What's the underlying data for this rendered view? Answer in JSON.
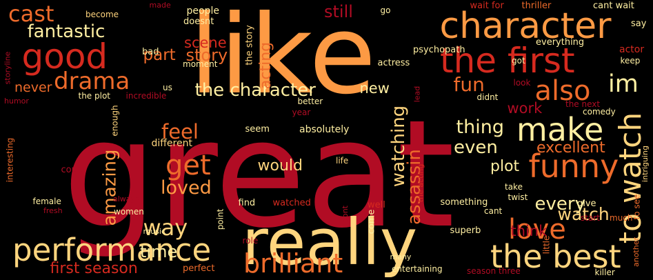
{
  "palette": {
    "background": "#000000",
    "deep_red": "#b10c24",
    "red": "#d62a1f",
    "orange": "#ee6b2b",
    "light_orange": "#fd9a44",
    "yellow": "#ffd57e",
    "pale_yellow": "#ffefa2"
  },
  "words": [
    {
      "text": "great",
      "color": "#b10c24"
    },
    {
      "text": "like",
      "color": "#fd9a44"
    },
    {
      "text": "really",
      "color": "#ffd57e"
    },
    {
      "text": "character",
      "color": "#fd9a44"
    },
    {
      "text": "the first",
      "color": "#d62a1f"
    },
    {
      "text": "good",
      "color": "#d62a1f"
    },
    {
      "text": "performance",
      "color": "#ffd57e"
    },
    {
      "text": "the best",
      "color": "#ffd57e"
    },
    {
      "text": "funny",
      "color": "#ee6b2b"
    },
    {
      "text": "make",
      "color": "#ffefa2"
    },
    {
      "text": "to watch",
      "color": "#ffd57e"
    },
    {
      "text": "brilliant",
      "color": "#ee6b2b"
    },
    {
      "text": "love",
      "color": "#ee6b2b"
    },
    {
      "text": "also",
      "color": "#ee6b2b"
    },
    {
      "text": "drama",
      "color": "#ee6b2b"
    },
    {
      "text": "cast",
      "color": "#ee6b2b"
    },
    {
      "text": "get",
      "color": "#ee6b2b"
    },
    {
      "text": "way",
      "color": "#ffd57e"
    },
    {
      "text": "im",
      "color": "#ffefa2"
    },
    {
      "text": "the character",
      "color": "#ffefa2"
    },
    {
      "text": "fantastic",
      "color": "#ffefa2"
    },
    {
      "text": "loved",
      "color": "#fd9a44"
    },
    {
      "text": "time",
      "color": "#ffefa2"
    },
    {
      "text": "fun",
      "color": "#ee6b2b"
    },
    {
      "text": "feel",
      "color": "#ee6b2b"
    },
    {
      "text": "thing",
      "color": "#ffefa2"
    },
    {
      "text": "amazing",
      "color": "#fd9a44"
    },
    {
      "text": "watching",
      "color": "#ffd57e"
    },
    {
      "text": "assassin",
      "color": "#ee6b2b"
    },
    {
      "text": "even",
      "color": "#ffefa2"
    },
    {
      "text": "excellent",
      "color": "#ee6b2b"
    },
    {
      "text": "every",
      "color": "#ffefa2"
    },
    {
      "text": "watch",
      "color": "#ffd57e"
    },
    {
      "text": "would",
      "color": "#ffd57e"
    },
    {
      "text": "plot",
      "color": "#ffefa2"
    },
    {
      "text": "first season",
      "color": "#d62a1f"
    },
    {
      "text": "part",
      "color": "#ee6b2b"
    },
    {
      "text": "story",
      "color": "#ee6b2b"
    },
    {
      "text": "scene",
      "color": "#d62a1f"
    },
    {
      "text": "still",
      "color": "#b10c24"
    },
    {
      "text": "new",
      "color": "#ffefa2"
    },
    {
      "text": "never",
      "color": "#ee6b2b"
    },
    {
      "text": "acting",
      "color": "#ee6b2b"
    },
    {
      "text": "work",
      "color": "#b10c24"
    },
    {
      "text": "think",
      "color": "#b10c24"
    },
    {
      "text": "the story",
      "color": "#ffd57e"
    },
    {
      "text": "become",
      "color": "#ffd57e"
    },
    {
      "text": "made",
      "color": "#b10c24"
    },
    {
      "text": "people",
      "color": "#ffefa2"
    },
    {
      "text": "doesnt",
      "color": "#ffefa2"
    },
    {
      "text": "go",
      "color": "#ffefa2"
    },
    {
      "text": "wait for",
      "color": "#d62a1f"
    },
    {
      "text": "thriller",
      "color": "#ee6b2b"
    },
    {
      "text": "cant wait",
      "color": "#ffefa2"
    },
    {
      "text": "say",
      "color": "#ffefa2"
    },
    {
      "text": "psychopath",
      "color": "#ffefa2"
    },
    {
      "text": "everything",
      "color": "#ffefa2"
    },
    {
      "text": "actor",
      "color": "#d62a1f"
    },
    {
      "text": "keep",
      "color": "#ffefa2"
    },
    {
      "text": "bad",
      "color": "#ffefa2"
    },
    {
      "text": "moment",
      "color": "#ffefa2"
    },
    {
      "text": "got",
      "color": "#ffefa2"
    },
    {
      "text": "actress",
      "color": "#ffefa2"
    },
    {
      "text": "storyline",
      "color": "#b10c24"
    },
    {
      "text": "us",
      "color": "#ffefa2"
    },
    {
      "text": "the plot",
      "color": "#ffefa2"
    },
    {
      "text": "incredible",
      "color": "#b10c24"
    },
    {
      "text": "lead",
      "color": "#b10c24"
    },
    {
      "text": "look",
      "color": "#b10c24"
    },
    {
      "text": "didnt",
      "color": "#ffefa2"
    },
    {
      "text": "better",
      "color": "#ffefa2"
    },
    {
      "text": "the next",
      "color": "#b10c24"
    },
    {
      "text": "year",
      "color": "#b10c24"
    },
    {
      "text": "comedy",
      "color": "#ffefa2"
    },
    {
      "text": "humor",
      "color": "#b10c24"
    },
    {
      "text": "enough",
      "color": "#ffd57e"
    },
    {
      "text": "seem",
      "color": "#ffefa2"
    },
    {
      "text": "absolutely",
      "color": "#ffefa2"
    },
    {
      "text": "interesting",
      "color": "#ee6b2b"
    },
    {
      "text": "different",
      "color": "#ffd57e"
    },
    {
      "text": "another",
      "color": "#ee6b2b"
    },
    {
      "text": "to see",
      "color": "#ee6b2b"
    },
    {
      "text": "intriguing",
      "color": "#ffd57e"
    },
    {
      "text": "life",
      "color": "#ffd57e"
    },
    {
      "text": "could",
      "color": "#b10c24"
    },
    {
      "text": "the acting",
      "color": "#d62a1f"
    },
    {
      "text": "take",
      "color": "#ffefa2"
    },
    {
      "text": "twist",
      "color": "#ffefa2"
    },
    {
      "text": "killer",
      "color": "#ffefa2"
    },
    {
      "text": "female",
      "color": "#ffefa2"
    },
    {
      "text": "fresh",
      "color": "#b10c24"
    },
    {
      "text": "always",
      "color": "#b10c24"
    },
    {
      "text": "women",
      "color": "#ffefa2"
    },
    {
      "text": "point",
      "color": "#ffefa2"
    },
    {
      "text": "find",
      "color": "#ffefa2"
    },
    {
      "text": "watched",
      "color": "#d62a1f"
    },
    {
      "text": "well",
      "color": "#d62a1f"
    },
    {
      "text": "dont",
      "color": "#b10c24"
    },
    {
      "text": "come",
      "color": "#ffefa2"
    },
    {
      "text": "something",
      "color": "#ffefa2"
    },
    {
      "text": "cant",
      "color": "#ffefa2"
    },
    {
      "text": "give",
      "color": "#ffefa2"
    },
    {
      "text": "start",
      "color": "#b10c24"
    },
    {
      "text": "much",
      "color": "#ee6b2b"
    },
    {
      "text": "music",
      "color": "#ffefa2"
    },
    {
      "text": "role",
      "color": "#b10c24"
    },
    {
      "text": "superb",
      "color": "#ffefa2"
    },
    {
      "text": "little",
      "color": "#ee6b2b"
    },
    {
      "text": "perfect",
      "color": "#ee6b2b"
    },
    {
      "text": "many",
      "color": "#ffefa2"
    },
    {
      "text": "entertaining",
      "color": "#ffefa2"
    },
    {
      "text": "season three",
      "color": "#b10c24"
    }
  ]
}
